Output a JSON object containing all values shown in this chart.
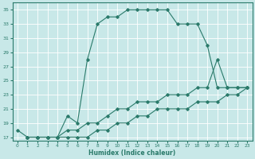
{
  "xlabel": "Humidex (Indice chaleur)",
  "xlim": [
    -0.5,
    23.5
  ],
  "ylim": [
    16.5,
    36
  ],
  "yticks": [
    17,
    19,
    21,
    23,
    25,
    27,
    29,
    31,
    33,
    35
  ],
  "xticks": [
    0,
    1,
    2,
    3,
    4,
    5,
    6,
    7,
    8,
    9,
    10,
    11,
    12,
    13,
    14,
    15,
    16,
    17,
    18,
    19,
    20,
    21,
    22,
    23
  ],
  "bg_color": "#c8e8e8",
  "line_color": "#2a7a6a",
  "line1_x": [
    0,
    1,
    2,
    3,
    4,
    5,
    6,
    7,
    8,
    9,
    10,
    11,
    12,
    13,
    14,
    15,
    16,
    17,
    18,
    19,
    20,
    21,
    22,
    23
  ],
  "line1_y": [
    18,
    17,
    17,
    17,
    17,
    20,
    19,
    28,
    33,
    34,
    34,
    35,
    35,
    35,
    35,
    35,
    33,
    33,
    33,
    30,
    24,
    24,
    24,
    24
  ],
  "line2_x": [
    1,
    2,
    3,
    4,
    5,
    6,
    7,
    8,
    9,
    10,
    11,
    12,
    13,
    14,
    15,
    16,
    17,
    18,
    19,
    20,
    21,
    22,
    23
  ],
  "line2_y": [
    17,
    17,
    17,
    17,
    18,
    18,
    19,
    19,
    20,
    21,
    21,
    22,
    22,
    22,
    23,
    23,
    23,
    24,
    24,
    28,
    24,
    24,
    24
  ],
  "line3_x": [
    1,
    2,
    3,
    4,
    5,
    6,
    7,
    8,
    9,
    10,
    11,
    12,
    13,
    14,
    15,
    16,
    17,
    18,
    19,
    20,
    21,
    22,
    23
  ],
  "line3_y": [
    17,
    17,
    17,
    17,
    17,
    17,
    17,
    18,
    18,
    19,
    19,
    20,
    20,
    21,
    21,
    21,
    21,
    22,
    22,
    22,
    23,
    23,
    24
  ]
}
